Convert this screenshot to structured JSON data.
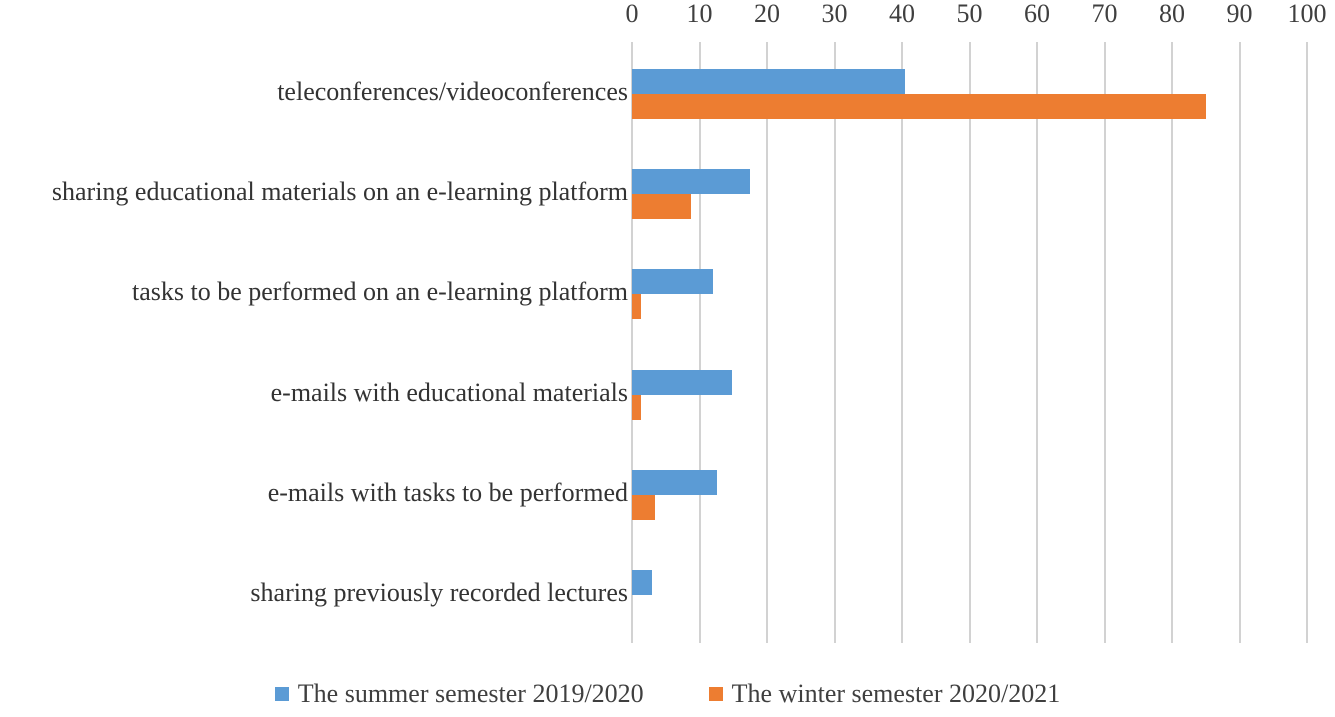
{
  "figure": {
    "background": "#ffffff",
    "text_color": "#3f3f3f",
    "gridline_color": "#d2d2d2"
  },
  "chart_data": {
    "type": "bar",
    "orientation": "horizontal",
    "title": "",
    "xlabel": "",
    "ylabel": "",
    "categories": [
      "teleconferences/videoconferences",
      "sharing educational materials on an e-learning platform",
      "tasks to be performed on an e-learning platform",
      "e-mails with educational materials",
      "e-mails with tasks to be performed",
      "sharing previously recorded lectures"
    ],
    "series": [
      {
        "name": "The summer semester 2019/2020",
        "color": "#5B9BD5",
        "values": [
          40.4,
          17.5,
          12,
          14.8,
          12.6,
          3
        ]
      },
      {
        "name": "The winter semester 2020/2021",
        "color": "#ED7D31",
        "values": [
          85,
          8.8,
          1.3,
          1.3,
          3.4,
          0
        ]
      }
    ],
    "x_axis": {
      "position": "top",
      "min": 0,
      "max": 100,
      "tick_interval": 10,
      "ticks": [
        0,
        10,
        20,
        30,
        40,
        50,
        60,
        70,
        80,
        90,
        100
      ]
    },
    "grid": true,
    "legend_position": "bottom"
  }
}
